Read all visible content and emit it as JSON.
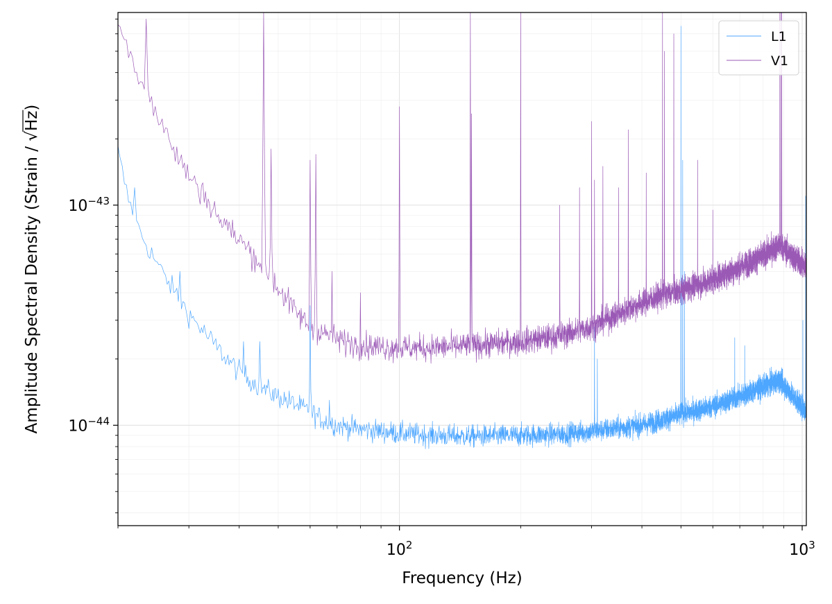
{
  "chart_data": {
    "type": "line",
    "title": "",
    "xlabel": "Frequency (Hz)",
    "ylabel": "Amplitude Spectral Density (Strain / √Hz)",
    "ylabel_parts": {
      "prefix": "Amplitude Spectral Density (Strain / ",
      "radical": "√",
      "radicand": "Hz",
      "suffix": ")"
    },
    "xscale": "log",
    "yscale": "log",
    "xlim": [
      20,
      1024
    ],
    "ylim": [
      3.5e-45,
      7.5e-43
    ],
    "grid": true,
    "legend_position": "top-right",
    "x_ticks": [
      {
        "value": 100,
        "base": "10",
        "exp": "2"
      },
      {
        "value": 1000,
        "base": "10",
        "exp": "3"
      }
    ],
    "y_ticks": [
      {
        "value": 1e-44,
        "base": "10",
        "exp": "−44"
      },
      {
        "value": 1e-43,
        "base": "10",
        "exp": "−43"
      }
    ],
    "series": [
      {
        "name": "L1",
        "color": "#4da6ff",
        "baseline": [
          [
            20,
            1.75e-43
          ],
          [
            21,
            1.15e-43
          ],
          [
            22,
            8.5e-44
          ],
          [
            24,
            6.2e-44
          ],
          [
            26,
            4.8e-44
          ],
          [
            28,
            3.9e-44
          ],
          [
            30,
            3.2e-44
          ],
          [
            33,
            2.6e-44
          ],
          [
            36,
            2.15e-44
          ],
          [
            40,
            1.75e-44
          ],
          [
            45,
            1.5e-44
          ],
          [
            50,
            1.35e-44
          ],
          [
            55,
            1.25e-44
          ],
          [
            60,
            1.15e-44
          ],
          [
            65,
            1.05e-44
          ],
          [
            70,
            1e-44
          ],
          [
            80,
            9.6e-45
          ],
          [
            100,
            9.2e-45
          ],
          [
            120,
            9e-45
          ],
          [
            150,
            8.9e-45
          ],
          [
            200,
            9e-45
          ],
          [
            250,
            9.1e-45
          ],
          [
            300,
            9.4e-45
          ],
          [
            350,
            9.7e-45
          ],
          [
            400,
            1e-44
          ],
          [
            450,
            1.06e-44
          ],
          [
            500,
            1.12e-44
          ],
          [
            600,
            1.22e-44
          ],
          [
            700,
            1.35e-44
          ],
          [
            800,
            1.5e-44
          ],
          [
            880,
            1.6e-44
          ],
          [
            950,
            1.35e-44
          ],
          [
            1024,
            1.15e-44
          ]
        ],
        "peaks": [
          [
            22,
            1.2e-43
          ],
          [
            28.5,
            5e-44
          ],
          [
            41,
            2.4e-44
          ],
          [
            45,
            2.4e-44
          ],
          [
            60,
            3.5e-44
          ],
          [
            67,
            1.3e-44
          ],
          [
            305,
            2.8e-44
          ],
          [
            310,
            2e-44
          ],
          [
            500,
            6.5e-43
          ],
          [
            505,
            1.6e-43
          ],
          [
            510,
            5e-44
          ],
          [
            680,
            2.5e-44
          ],
          [
            720,
            2.3e-44
          ],
          [
            1004,
            3e-44
          ],
          [
            1020,
            1.1e-43
          ]
        ],
        "noise": 0.05
      },
      {
        "name": "V1",
        "color": "#9b59b6",
        "baseline": [
          [
            20,
            7e-43
          ],
          [
            21,
            5.5e-43
          ],
          [
            22,
            4.3e-43
          ],
          [
            24,
            3e-43
          ],
          [
            26,
            2.2e-43
          ],
          [
            28,
            1.7e-43
          ],
          [
            30,
            1.35e-43
          ],
          [
            33,
            1.1e-43
          ],
          [
            36,
            8.5e-44
          ],
          [
            40,
            7e-44
          ],
          [
            45,
            5.5e-44
          ],
          [
            50,
            4.2e-44
          ],
          [
            55,
            3.3e-44
          ],
          [
            60,
            2.8e-44
          ],
          [
            70,
            2.45e-44
          ],
          [
            80,
            2.3e-44
          ],
          [
            100,
            2.25e-44
          ],
          [
            120,
            2.25e-44
          ],
          [
            150,
            2.3e-44
          ],
          [
            200,
            2.4e-44
          ],
          [
            250,
            2.55e-44
          ],
          [
            300,
            2.8e-44
          ],
          [
            350,
            3.2e-44
          ],
          [
            400,
            3.6e-44
          ],
          [
            450,
            3.9e-44
          ],
          [
            500,
            4.1e-44
          ],
          [
            600,
            4.6e-44
          ],
          [
            700,
            5.2e-44
          ],
          [
            800,
            5.9e-44
          ],
          [
            880,
            6.6e-44
          ],
          [
            950,
            5.8e-44
          ],
          [
            1024,
            5.2e-44
          ]
        ],
        "peaks": [
          [
            23.5,
            7e-43
          ],
          [
            46,
            7.5e-43
          ],
          [
            48,
            1.8e-43
          ],
          [
            60,
            1.6e-43
          ],
          [
            62,
            1.7e-43
          ],
          [
            68,
            5e-44
          ],
          [
            80,
            4e-44
          ],
          [
            100,
            2.8e-43
          ],
          [
            150,
            7.5e-43
          ],
          [
            151,
            2.6e-43
          ],
          [
            200,
            7.5e-43
          ],
          [
            250,
            1e-43
          ],
          [
            280,
            1.2e-43
          ],
          [
            300,
            2.4e-43
          ],
          [
            305,
            1.3e-43
          ],
          [
            320,
            1.5e-43
          ],
          [
            350,
            1.2e-43
          ],
          [
            370,
            2.2e-43
          ],
          [
            410,
            1.4e-43
          ],
          [
            450,
            7.5e-43
          ],
          [
            455,
            5e-43
          ],
          [
            480,
            6e-43
          ],
          [
            550,
            1.6e-43
          ],
          [
            600,
            9.5e-44
          ],
          [
            880,
            7.5e-43
          ],
          [
            885,
            7.5e-43
          ],
          [
            890,
            7.5e-43
          ]
        ],
        "noise": 0.06
      }
    ]
  }
}
